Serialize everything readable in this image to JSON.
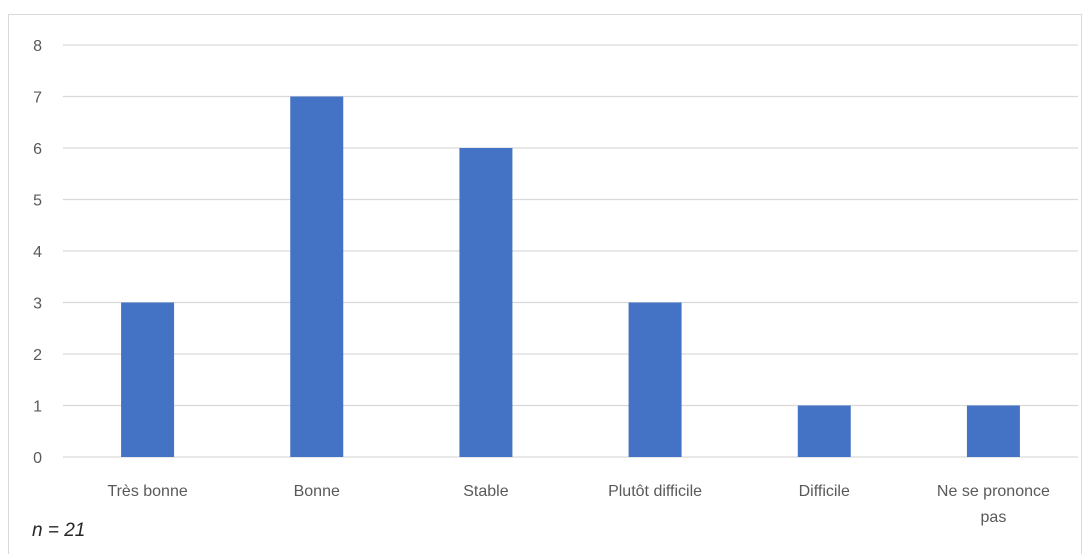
{
  "chart_data": {
    "type": "bar",
    "title": "",
    "xlabel": "",
    "ylabel": "",
    "categories": [
      "Très bonne",
      "Bonne",
      "Stable",
      "Plutôt difficile",
      "Difficile",
      "Ne se prononce pas"
    ],
    "values": [
      3,
      7,
      6,
      3,
      1,
      1
    ],
    "ylim": [
      0,
      8
    ],
    "yticks": [
      "0",
      "1",
      "2",
      "3",
      "4",
      "5",
      "6",
      "7",
      "8"
    ],
    "grid": true,
    "legend": "none",
    "colors": {
      "bar": "#4472c4",
      "grid": "#d9d9d9",
      "text": "#595959"
    }
  },
  "note": "n = 21"
}
